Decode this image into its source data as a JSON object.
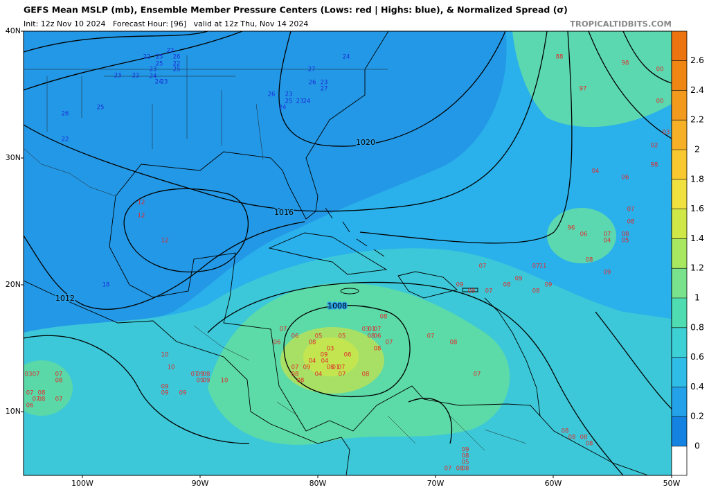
{
  "header": {
    "title": "GEFS Mean MSLP (mb), Ensemble Member Pressure Centers (Lows: red | Highs: blue), & Normalized Spread (σ)",
    "subtitle": "Init: 12z Nov 10 2024   Forecast Hour: [96]   valid at 12z Thu, Nov 14 2024",
    "credit": "TROPICALTIDBITS.COM"
  },
  "lat_labels": [
    "40N",
    "30N",
    "20N",
    "10N"
  ],
  "lon_labels": [
    "100W",
    "90W",
    "80W",
    "70W",
    "60W",
    "50W"
  ],
  "contour_labels": [
    "1020",
    "1016",
    "1012",
    "1008"
  ],
  "colorbar": {
    "ticks": [
      0,
      0.2,
      0.4,
      0.6,
      0.8,
      1,
      1.2,
      1.4,
      1.6,
      1.8,
      2,
      2.2,
      2.4,
      2.6
    ],
    "colors": [
      "#1482e0",
      "#23a2ea",
      "#2fbde8",
      "#3dd0d4",
      "#4fdcb0",
      "#7ae28c",
      "#a8e860",
      "#cfe848",
      "#f0e040",
      "#f8c830",
      "#f5b028",
      "#f29a1e",
      "#ef8614",
      "#ec7410"
    ],
    "below_color": "#ffffff"
  },
  "highs": [
    "22",
    "22",
    "25",
    "26",
    "25",
    "22",
    "23",
    "22",
    "23",
    "24",
    "23",
    "24",
    "25",
    "27",
    "26",
    "23",
    "27",
    "24",
    "26",
    "23",
    "25",
    "24",
    "24",
    "23",
    "26",
    "22",
    "25",
    "18"
  ],
  "lows": [
    "12",
    "12",
    "12",
    "88",
    "98",
    "00",
    "97",
    "00",
    "03",
    "02",
    "98",
    "04",
    "06",
    "07",
    "08",
    "96",
    "06",
    "07",
    "04",
    "08",
    "05",
    "08",
    "09",
    "07",
    "07",
    "11",
    "09",
    "08",
    "09",
    "09",
    "09",
    "07",
    "08",
    "08",
    "07",
    "06",
    "05",
    "05",
    "03",
    "01",
    "07",
    "08",
    "06",
    "07",
    "07",
    "08",
    "08",
    "06",
    "03",
    "08",
    "09",
    "06",
    "04",
    "04",
    "08",
    "01",
    "07",
    "09",
    "07",
    "08",
    "04",
    "07",
    "08",
    "08",
    "07",
    "10",
    "10",
    "07",
    "09",
    "08",
    "09",
    "09",
    "10",
    "09",
    "09",
    "09",
    "03",
    "07",
    "07",
    "08",
    "07",
    "08",
    "07",
    "08",
    "07",
    "06",
    "08",
    "08",
    "08",
    "08",
    "09",
    "08",
    "05",
    "07",
    "08",
    "08"
  ]
}
